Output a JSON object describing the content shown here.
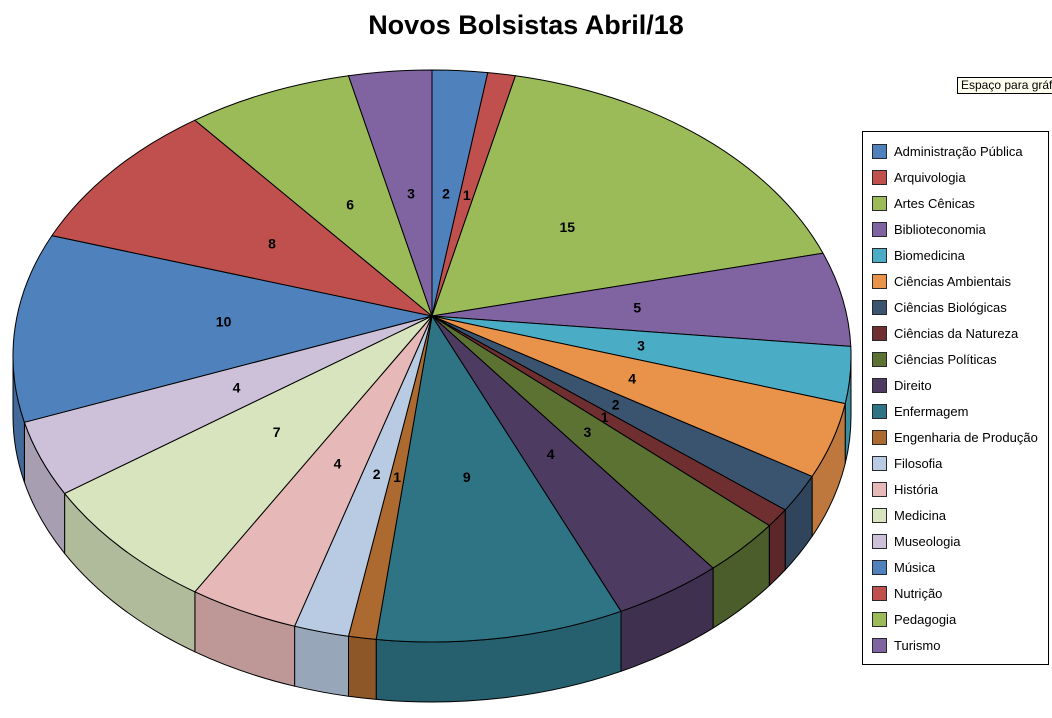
{
  "title": "Novos Bolsistas Abril/18",
  "note_box": {
    "text": "Espaço para gráfic",
    "background": "#FFFFF0"
  },
  "chart_data": {
    "type": "pie",
    "style": "3d",
    "title": "Novos Bolsistas Abril/18",
    "start_angle": 0,
    "direction": "clockwise",
    "legend_position": "right",
    "data_labels": "values",
    "slices": [
      {
        "label": "Administração Pública",
        "value": 2,
        "color": "#4F81BD"
      },
      {
        "label": "Arquivologia",
        "value": 1,
        "color": "#C0504D"
      },
      {
        "label": "Artes Cênicas",
        "value": 15,
        "color": "#9BBB59"
      },
      {
        "label": "Biblioteconomia",
        "value": 5,
        "color": "#8064A2"
      },
      {
        "label": "Biomedicina",
        "value": 3,
        "color": "#4BACC6"
      },
      {
        "label": "Ciências Ambientais",
        "value": 4,
        "color": "#E8924A"
      },
      {
        "label": "Ciências Biológicas",
        "value": 2,
        "color": "#3A546F"
      },
      {
        "label": "Ciências da Natureza",
        "value": 1,
        "color": "#6F2F31"
      },
      {
        "label": "Ciências Políticas",
        "value": 3,
        "color": "#5C7233"
      },
      {
        "label": "Direito",
        "value": 4,
        "color": "#4D3B62"
      },
      {
        "label": "Enfermagem",
        "value": 9,
        "color": "#2E7485"
      },
      {
        "label": "Engenharia de Produção",
        "value": 1,
        "color": "#AD6A30"
      },
      {
        "label": "Filosofia",
        "value": 2,
        "color": "#B9CBE2"
      },
      {
        "label": "História",
        "value": 4,
        "color": "#E6B9B8"
      },
      {
        "label": "Medicina",
        "value": 7,
        "color": "#D7E4BD"
      },
      {
        "label": "Museologia",
        "value": 4,
        "color": "#CCC1D9"
      },
      {
        "label": "Música",
        "value": 10,
        "color": "#4F81BD"
      },
      {
        "label": "Nutrição",
        "value": 8,
        "color": "#C0504D"
      },
      {
        "label": "Pedagogia",
        "value": 6,
        "color": "#9BBB59"
      },
      {
        "label": "Turismo",
        "value": 3,
        "color": "#8064A2"
      }
    ]
  }
}
